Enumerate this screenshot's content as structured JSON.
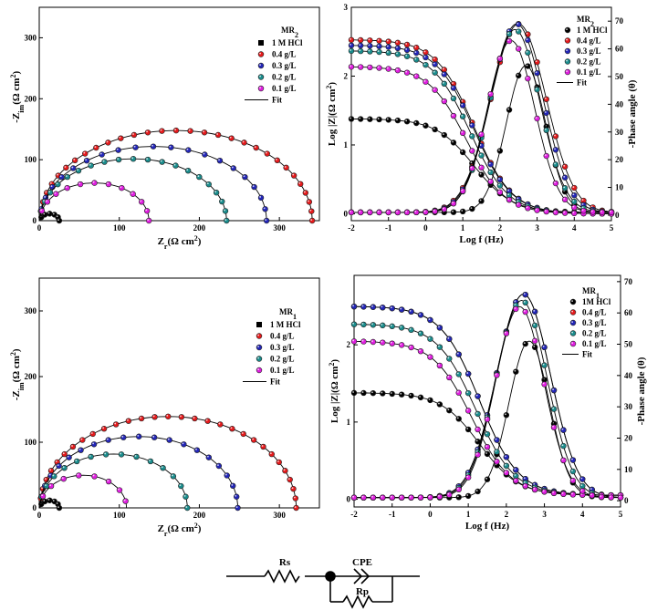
{
  "colors": {
    "blank": "#000000",
    "c04": "#e41a1c",
    "c03": "#2326b8",
    "c02": "#1a8c8c",
    "c01": "#e01ee0",
    "fit": "#000000"
  },
  "chart_data": [
    {
      "id": "nyq1",
      "type": "scatter",
      "subtype": "nyquist",
      "title": "MR2",
      "xlabel": "Zr(Ω cm²)",
      "ylabel": "-Zim(Ω cm²)",
      "xlim": [
        0,
        350
      ],
      "ylim": [
        0,
        350
      ],
      "xticks": [
        0,
        100,
        200,
        300
      ],
      "yticks": [
        0,
        100,
        200,
        300
      ],
      "legend": {
        "title": "MR2",
        "entries": [
          "1 M HCl",
          "0.4 g/L",
          "0.3 g/L",
          "0.2 g/L",
          "0.1 g/L",
          "Fit"
        ]
      },
      "series": [
        {
          "name": "1 M HCl",
          "Rs": 1,
          "Rp": 24,
          "depression": 0.05
        },
        {
          "name": "0.4 g/L",
          "Rs": 1,
          "Rp": 340,
          "depression": 0.13
        },
        {
          "name": "0.3 g/L",
          "Rs": 1,
          "Rp": 283,
          "depression": 0.14
        },
        {
          "name": "0.2 g/L",
          "Rs": 1,
          "Rp": 233,
          "depression": 0.13
        },
        {
          "name": "0.1 g/L",
          "Rs": 1,
          "Rp": 136,
          "depression": 0.09
        }
      ]
    },
    {
      "id": "bode1",
      "type": "line",
      "subtype": "bode",
      "title": "MR2",
      "xlabel": "Log f (Hz)",
      "ylabel": "Log |Z|(Ω cm²)",
      "y2label": "-Phase angle (θ)",
      "xlim": [
        -2,
        5
      ],
      "ylim": [
        -0.1,
        3
      ],
      "y2lim": [
        -2,
        75
      ],
      "xticks": [
        -2,
        -1,
        0,
        1,
        2,
        3,
        4,
        5
      ],
      "yticks": [
        0,
        1,
        2,
        3
      ],
      "y2ticks": [
        0,
        10,
        20,
        30,
        40,
        50,
        60,
        70
      ],
      "legend": {
        "title": "MR2",
        "entries": [
          "1 M HCl",
          "0.4 g/L",
          "0.3 g/L",
          "0.2 g/L",
          "0.1 g/L",
          "Fit"
        ]
      },
      "series": [
        {
          "name": "1 M HCl",
          "logZ_low": 1.38,
          "logZ_high": 0.02,
          "knee": 1.3,
          "phase_max": 53,
          "phase_peak_logf": 2.7,
          "phase_width": 0.75
        },
        {
          "name": "0.4 g/L",
          "logZ_low": 2.53,
          "logZ_high": 0.0,
          "knee": 1.3,
          "phase_max": 68,
          "phase_peak_logf": 2.5,
          "phase_width": 1.05
        },
        {
          "name": "0.3 g/L",
          "logZ_low": 2.45,
          "logZ_high": 0.0,
          "knee": 1.3,
          "phase_max": 68,
          "phase_peak_logf": 2.45,
          "phase_width": 1.0
        },
        {
          "name": "0.2 g/L",
          "logZ_low": 2.37,
          "logZ_high": 0.0,
          "knee": 1.2,
          "phase_max": 66,
          "phase_peak_logf": 2.4,
          "phase_width": 0.95
        },
        {
          "name": "0.1 g/L",
          "logZ_low": 2.14,
          "logZ_high": 0.0,
          "knee": 1.1,
          "phase_max": 62,
          "phase_peak_logf": 2.3,
          "phase_width": 0.9
        }
      ]
    },
    {
      "id": "nyq2",
      "type": "scatter",
      "subtype": "nyquist",
      "title": "MR1",
      "xlabel": "Zr(Ω cm²)",
      "ylabel": "-Zim(Ω cm²)",
      "xlim": [
        0,
        350
      ],
      "ylim": [
        0,
        350
      ],
      "xticks": [
        0,
        100,
        200,
        300
      ],
      "yticks": [
        0,
        100,
        200,
        300
      ],
      "legend": {
        "title": "MR1",
        "entries": [
          "1 M HCl",
          "0.4 g/L",
          "0.3 g/L",
          "0.2 g/L",
          "0.1 g/L",
          "Fit"
        ]
      },
      "series": [
        {
          "name": "1 M HCl",
          "Rs": 1,
          "Rp": 24,
          "depression": 0.05
        },
        {
          "name": "0.4 g/L",
          "Rs": 1,
          "Rp": 320,
          "depression": 0.13
        },
        {
          "name": "0.3 g/L",
          "Rs": 1,
          "Rp": 247,
          "depression": 0.12
        },
        {
          "name": "0.2 g/L",
          "Rs": 1,
          "Rp": 184,
          "depression": 0.11
        },
        {
          "name": "0.1 g/L",
          "Rs": 1,
          "Rp": 108,
          "depression": 0.08
        }
      ]
    },
    {
      "id": "bode2",
      "type": "line",
      "subtype": "bode",
      "title": "MR1",
      "xlabel": "Log f (Hz)",
      "ylabel": "Log |Z|(Ω cm²)",
      "y2label": "-Phase angle (θ)",
      "xlim": [
        -2,
        5
      ],
      "ylim": [
        -0.1,
        2.9
      ],
      "y2lim": [
        -2,
        72
      ],
      "xticks": [
        -2,
        -1,
        0,
        1,
        2,
        3,
        4,
        5
      ],
      "yticks": [
        0,
        1,
        2
      ],
      "y2ticks": [
        0,
        10,
        20,
        30,
        40,
        50,
        60,
        70
      ],
      "legend": {
        "title": "MR1",
        "entries": [
          "1M HCl",
          "0.4 g/L",
          "0.3 g/L",
          "0.2 g/L",
          "0.1 g/L",
          "Fit"
        ]
      },
      "series": [
        {
          "name": "1M HCl",
          "logZ_low": 1.38,
          "logZ_high": 0.05,
          "knee": 1.3,
          "phase_max": 50,
          "phase_peak_logf": 2.6,
          "phase_width": 0.75
        },
        {
          "name": "0.4 g/L",
          "logZ_low": 2.5,
          "logZ_high": 0.05,
          "knee": 1.3,
          "phase_max": 65,
          "phase_peak_logf": 2.45,
          "phase_width": 1.0
        },
        {
          "name": "0.3 g/L",
          "logZ_low": 2.5,
          "logZ_high": 0.05,
          "knee": 1.3,
          "phase_max": 65,
          "phase_peak_logf": 2.45,
          "phase_width": 1.0
        },
        {
          "name": "0.2 g/L",
          "logZ_low": 2.27,
          "logZ_high": 0.05,
          "knee": 1.2,
          "phase_max": 63,
          "phase_peak_logf": 2.4,
          "phase_width": 0.95
        },
        {
          "name": "0.1 g/L",
          "logZ_low": 2.05,
          "logZ_high": 0.05,
          "knee": 1.1,
          "phase_max": 61,
          "phase_peak_logf": 2.35,
          "phase_width": 0.9
        }
      ]
    }
  ],
  "circuit": {
    "rs_label": "Rs",
    "cpe_label": "CPE",
    "rp_label": "Rp"
  }
}
